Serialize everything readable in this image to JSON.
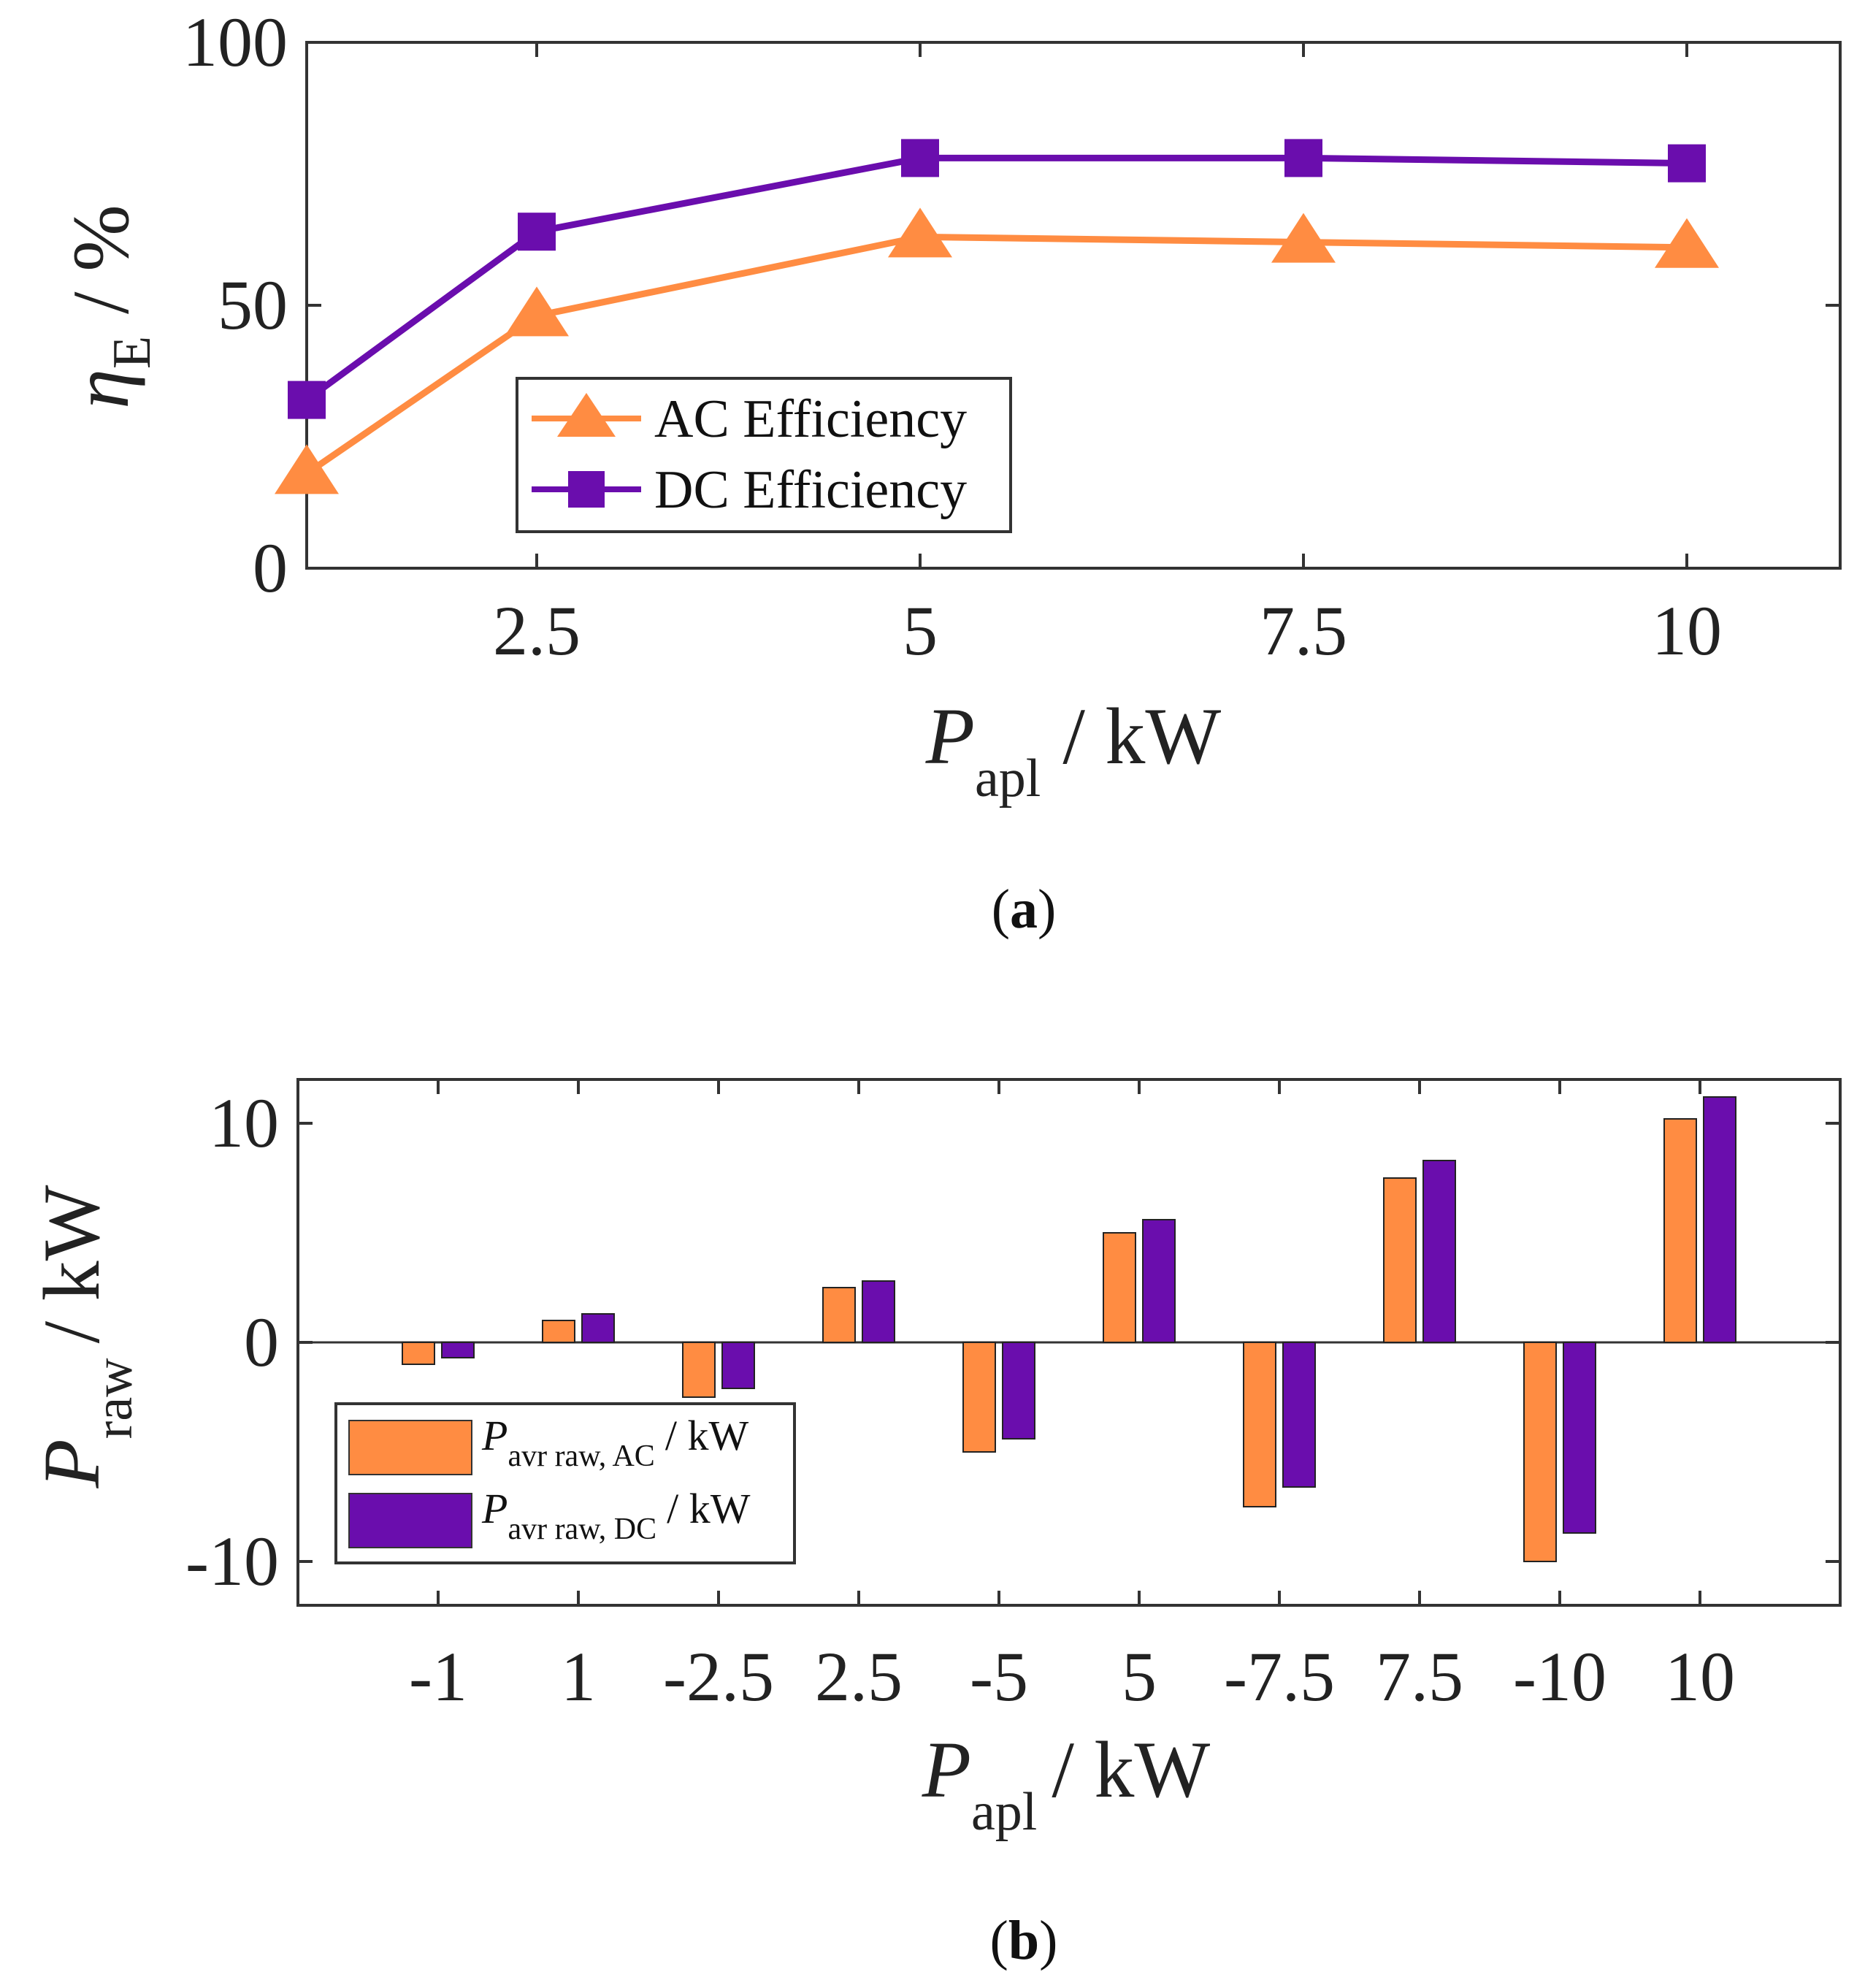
{
  "colors": {
    "ac": "#FF8C42",
    "dc": "#6A0DAD",
    "axis": "#333333"
  },
  "chart_data": [
    {
      "panel": "a",
      "panel_label": "a",
      "type": "line",
      "x": [
        1,
        2.5,
        5,
        7.5,
        10
      ],
      "xlim": [
        1,
        11
      ],
      "ylim": [
        0,
        100
      ],
      "xticks": [
        "2.5",
        "5",
        "7.5",
        "10"
      ],
      "xtick_values": [
        2.5,
        5,
        7.5,
        10
      ],
      "yticks": [
        "0",
        "50",
        "100"
      ],
      "ytick_values": [
        0,
        50,
        100
      ],
      "ylabel_symbol": "η",
      "ylabel_sub": "E",
      "ylabel_unit": "/  %",
      "xlabel_symbol": "P",
      "xlabel_sub": "apl",
      "xlabel_unit": "/  kW",
      "series": [
        {
          "name": "AC Efficiency",
          "marker": "triangle",
          "values": [
            18,
            48,
            63,
            62,
            61
          ]
        },
        {
          "name": "DC Efficiency",
          "marker": "square",
          "values": [
            32,
            64,
            78,
            78,
            77
          ]
        }
      ],
      "legend": "center-left"
    },
    {
      "panel": "b",
      "panel_label": "b",
      "type": "bar",
      "categories": [
        "-1",
        "1",
        "-2.5",
        "2.5",
        "-5",
        "5",
        "-7.5",
        "7.5",
        "-10",
        "10"
      ],
      "ylim": [
        -12,
        12
      ],
      "yticks": [
        "-10",
        "0",
        "10"
      ],
      "ytick_values": [
        -10,
        0,
        10
      ],
      "ylabel_symbol": "P",
      "ylabel_sub": "raw",
      "ylabel_unit": "/ kW",
      "xlabel_symbol": "P",
      "xlabel_sub": "apl",
      "xlabel_unit": "/ kW",
      "series": [
        {
          "name": "P",
          "name_sub": "avr raw, AC",
          "name_unit": "/ kW",
          "values": [
            -1.0,
            1.0,
            -2.5,
            2.5,
            -5.0,
            5.0,
            -7.5,
            7.5,
            -10.0,
            10.2
          ]
        },
        {
          "name": "P",
          "name_sub": "avr raw, DC",
          "name_unit": "/ kW",
          "values": [
            -0.7,
            1.3,
            -2.1,
            2.8,
            -4.4,
            5.6,
            -6.6,
            8.3,
            -8.7,
            11.2
          ]
        }
      ],
      "legend": "bottom-left"
    }
  ]
}
